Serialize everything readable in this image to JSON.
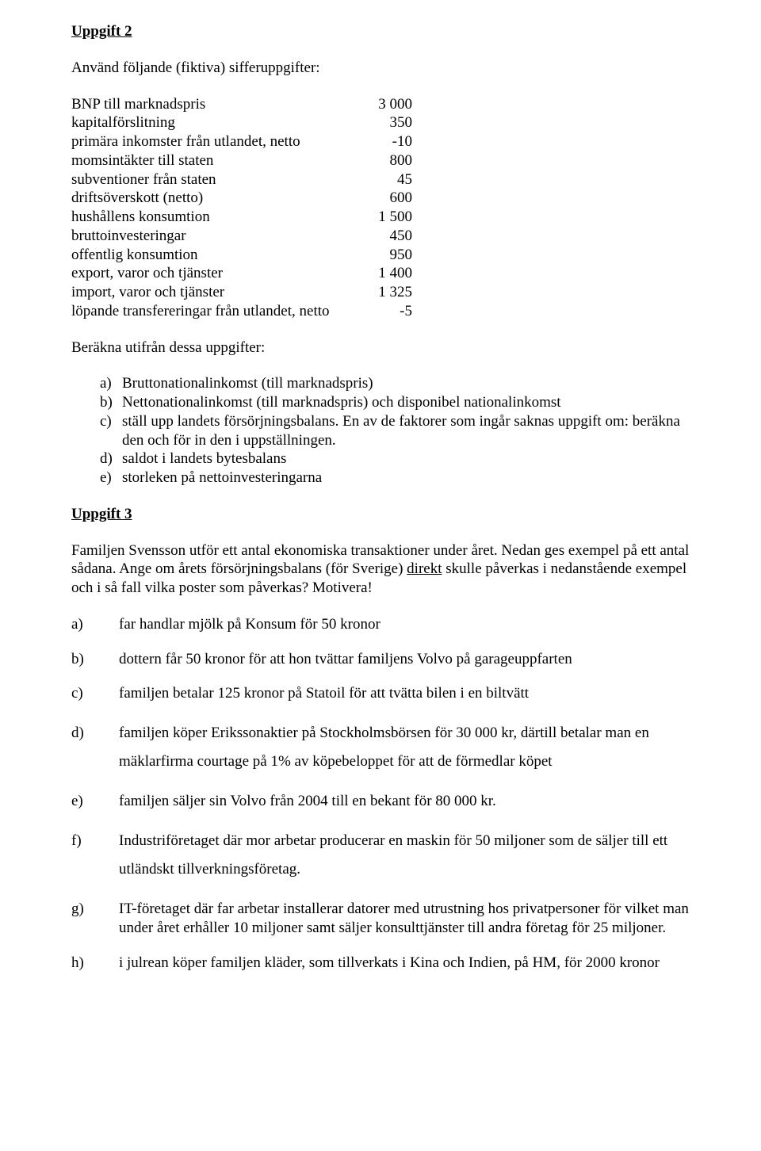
{
  "uppgift2": {
    "title": "Uppgift 2",
    "intro": "Använd följande (fiktiva) sifferuppgifter:",
    "rows": [
      {
        "label": "BNP till marknadspris",
        "value": "3 000"
      },
      {
        "label": "kapitalförslitning",
        "value": "350"
      },
      {
        "label": "primära inkomster från utlandet, netto",
        "value": "-10"
      },
      {
        "label": "momsintäkter till staten",
        "value": "800"
      },
      {
        "label": "subventioner från staten",
        "value": "45"
      },
      {
        "label": "driftsöverskott (netto)",
        "value": "600"
      },
      {
        "label": "hushållens konsumtion",
        "value": "1 500"
      },
      {
        "label": "bruttoinvesteringar",
        "value": "450"
      },
      {
        "label": "offentlig konsumtion",
        "value": "950"
      },
      {
        "label": "export, varor och tjänster",
        "value": "1 400"
      },
      {
        "label": "import, varor och tjänster",
        "value": "1 325"
      },
      {
        "label": "löpande transfereringar från utlandet, netto",
        "value": "-5"
      }
    ],
    "calcHeading": "Beräkna utifrån dessa uppgifter:",
    "items": {
      "a": "Bruttonationalinkomst (till marknadspris)",
      "b": "Nettonationalinkomst (till marknadspris) och disponibel nationalinkomst",
      "c": "ställ upp landets försörjningsbalans. En av de faktorer som ingår saknas uppgift om: beräkna den och för in den i uppställningen.",
      "d": "saldot i landets bytesbalans",
      "e": "storleken på nettoinvesteringarna"
    }
  },
  "uppgift3": {
    "title": "Uppgift 3",
    "intro_pre": "Familjen Svensson utför ett antal ekonomiska transaktioner under året. Nedan ges exempel på ett antal sådana. Ange om årets försörjningsbalans (för Sverige) ",
    "intro_underlined": "direkt",
    "intro_post": " skulle påverkas i nedanstående exempel och i så fall vilka poster som påverkas? Motivera!",
    "questions": {
      "a": "far handlar mjölk på Konsum för 50 kronor",
      "b": "dottern får 50 kronor för att hon tvättar familjens Volvo på garageuppfarten",
      "c": "familjen betalar 125 kronor på Statoil för att tvätta bilen i en biltvätt",
      "d": "familjen köper Erikssonaktier på Stockholmsbörsen för 30 000 kr, därtill betalar man en mäklarfirma courtage på 1% av köpebeloppet för att de förmedlar köpet",
      "e": "familjen säljer sin Volvo från 2004 till en bekant för 80 000 kr.",
      "f": "Industriföretaget där mor arbetar producerar en maskin för 50 miljoner som de säljer till ett utländskt tillverkningsföretag.",
      "g": "IT-företaget där far arbetar installerar datorer med utrustning hos privatpersoner för vilket man under året erhåller 10 miljoner samt säljer konsulttjänster till andra företag för 25 miljoner.",
      "h": "i julrean köper familjen kläder, som tillverkats i Kina och Indien, på HM, för 2000 kronor"
    }
  },
  "markers": {
    "a": "a)",
    "b": "b)",
    "c": "c)",
    "d": "d)",
    "e": "e)",
    "f": "f)",
    "g": "g)",
    "h": "h)"
  }
}
